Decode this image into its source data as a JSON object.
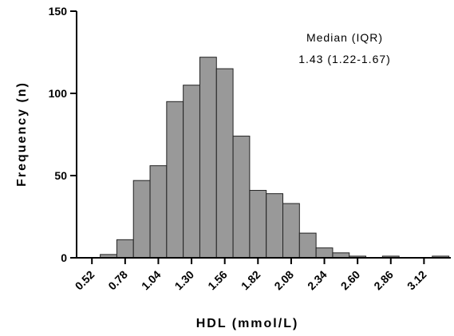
{
  "chart_data": {
    "type": "histogram",
    "xlabel": "HDL (mmol/L)",
    "ylabel": "Frequency (n)",
    "annotations": [
      "Median (IQR)",
      "1.43 (1.22-1.67)"
    ],
    "bins": [
      0.585,
      0.715,
      0.845,
      0.975,
      1.105,
      1.235,
      1.365,
      1.495,
      1.625,
      1.755,
      1.885,
      2.015,
      2.145,
      2.275,
      2.405,
      2.535,
      2.665,
      2.795,
      2.925,
      3.055,
      3.185,
      3.315
    ],
    "values": [
      2,
      11,
      47,
      56,
      95,
      105,
      122,
      115,
      74,
      41,
      39,
      33,
      15,
      6,
      3,
      1,
      0,
      1,
      0,
      0,
      1
    ],
    "color": "#999999",
    "xlim": [
      0.4,
      3.33
    ],
    "xticks": [
      0.52,
      0.78,
      1.04,
      {
        "value": 1.3,
        "label": "1.30"
      },
      1.56,
      1.82,
      2.08,
      2.34,
      {
        "value": 2.6,
        "label": "2.60"
      },
      2.86,
      3.12
    ],
    "ylim": [
      0,
      150
    ],
    "yticks": [
      0,
      50,
      100,
      150
    ]
  }
}
